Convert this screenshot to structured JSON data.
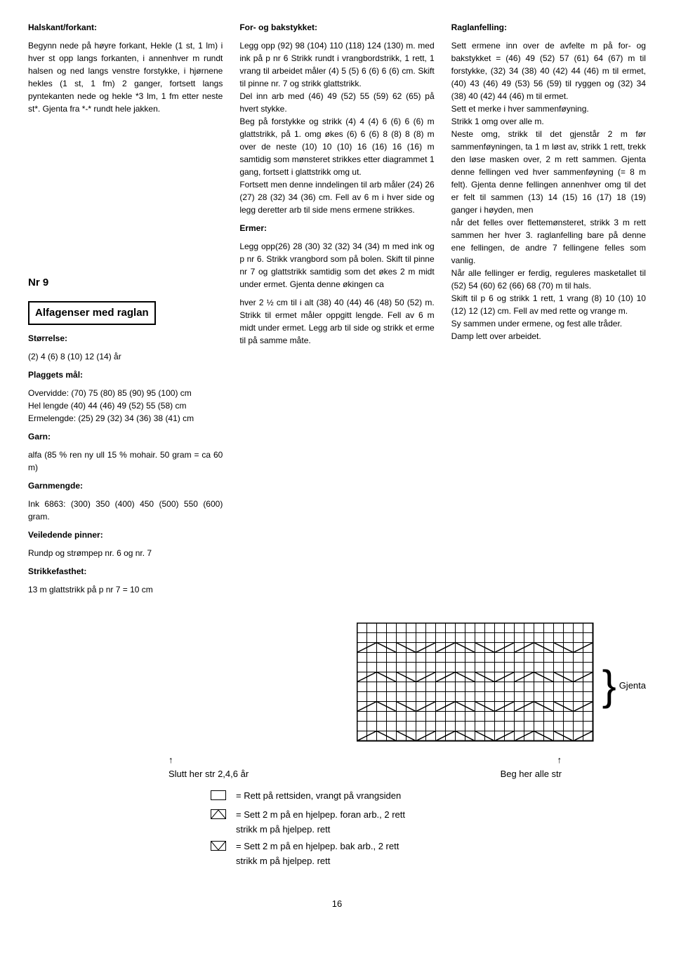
{
  "col1": {
    "s1_title": "Halskant/forkant:",
    "s1_body": "Begynn nede på høyre forkant, Hekle (1 st, 1 lm) i hver st opp langs forkanten, i annenhver m rundt halsen og ned langs venstre forstykke, i hjørnene hekles (1 st, 1 fm) 2 ganger, fortsett langs pyntekanten nede og hekle *3 lm, 1 fm etter neste st*. Gjenta fra *-* rundt hele jakken.",
    "nr": "Nr 9",
    "box": "Alfagenser med raglan",
    "size_label": "Størrelse:",
    "size_val": "(2) 4 (6) 8 (10) 12 (14) år",
    "plag_label": "Plaggets mål:",
    "plag_val": "Overvidde: (70) 75 (80) 85 (90) 95 (100) cm\nHel lengde (40) 44 (46) 49 (52) 55 (58) cm\nErmelengde: (25) 29 (32) 34 (36) 38 (41) cm",
    "garn_label": "Garn:",
    "garn_val": "alfa (85 % ren ny ull 15 % mohair. 50 gram = ca 60 m)",
    "garnm_label": "Garnmengde:",
    "garnm_val": "Ink 6863: (300) 350 (400) 450 (500) 550 (600) gram.",
    "pinner_label": "Veiledende pinner:",
    "pinner_val": "Rundp og strømpep nr. 6 og nr. 7",
    "fast_label": "Strikkefasthet:",
    "fast_val": "13 m glattstrikk på p nr 7 = 10 cm"
  },
  "col2": {
    "s1_title": "For- og bakstykket:",
    "s1_body": "Legg opp (92) 98 (104) 110 (118) 124 (130) m. med ink på p nr 6 Strikk rundt i vrangbordstrikk, 1 rett, 1 vrang til arbeidet måler (4) 5 (5) 6 (6) 6 (6) cm. Skift til pinne nr. 7 og strikk glattstrikk.\nDel inn arb med (46) 49 (52) 55 (59) 62 (65) på hvert stykke.\nBeg på forstykke og strikk (4) 4 (4) 6 (6) 6 (6) m glattstrikk, på 1. omg økes (6) 6 (6) 8 (8) 8 (8) m over de neste (10) 10 (10) 16 (16) 16 (16) m samtidig som mønsteret strikkes etter diagrammet 1 gang, fortsett i glattstrikk omg ut.\nFortsett men denne inndelingen til arb måler (24) 26 (27) 28 (32) 34 (36) cm. Fell av 6 m i hver side og legg deretter arb til side mens ermene strikkes.",
    "s2_title": "Ermer:",
    "s2_body": "Legg opp(26) 28 (30) 32 (32) 34 (34) m med ink og p nr 6. Strikk vrangbord som på bolen. Skift til pinne nr 7 og glattstrikk samtidig som det økes 2 m midt under ermet. Gjenta denne økingen ca",
    "s2_body2": "hver 2 ½ cm til i alt (38) 40 (44) 46 (48) 50 (52) m. Strikk til ermet måler oppgitt lengde. Fell av 6 m midt under ermet. Legg arb til side og strikk et erme til på samme måte."
  },
  "col3": {
    "s1_title": "Raglanfelling:",
    "s1_body": "Sett ermene inn over de avfelte m på for- og bakstykket = (46) 49 (52) 57 (61) 64 (67) m til forstykke, (32) 34 (38) 40 (42) 44 (46) m til ermet, (40) 43 (46) 49 (53) 56 (59) til ryggen og (32) 34 (38) 40 (42) 44 (46) m til ermet.\nSett et merke i hver sammenføyning.\nStrikk 1 omg over alle m.\nNeste omg, strikk til det gjenstår 2 m før sammenføyningen, ta 1 m løst av, strikk 1 rett, trekk den løse masken over, 2 m rett sammen. Gjenta denne fellingen ved hver sammenføyning (= 8 m felt). Gjenta denne fellingen annenhver omg til det er felt til sammen (13) 14 (15) 16 (17) 18 (19) ganger i høyden, men\nnår det felles over flettemønsteret, strikk 3 m rett sammen her hver 3. raglanfelling bare på denne ene fellingen, de andre 7 fellingene felles som vanlig.\nNår alle fellinger er ferdig, reguleres masketallet til (52) 54 (60) 62 (66) 68 (70) m til hals.\nSkift til p 6 og strikk 1 rett, 1 vrang (8) 10 (10) 10 (12) 12 (12) cm. Fell av med rette og vrange m.\nSy sammen under ermene, og fest alle tråder.\nDamp lett over arbeidet."
  },
  "diagram": {
    "gjenta": "Gjenta",
    "left_arrow": "Slutt her str 2,4,6 år",
    "right_arrow": "Beg her alle str",
    "legend1": "= Rett på rettsiden, vrangt på vrangsiden",
    "legend2a": "= Sett 2 m på en hjelpep. foran arb., 2 rett",
    "legend2b": "strikk m på hjelpep. rett",
    "legend3a": "= Sett 2 m på en hjelpep. bak arb., 2 rett",
    "legend3b": "strikk m på hjelpep. rett"
  },
  "page": "16",
  "chart": {
    "cols": 24,
    "rows": 12,
    "cell": 14,
    "zigzag_rows": [
      2,
      5,
      8,
      11
    ],
    "border_color": "#000",
    "bg": "#fff"
  }
}
